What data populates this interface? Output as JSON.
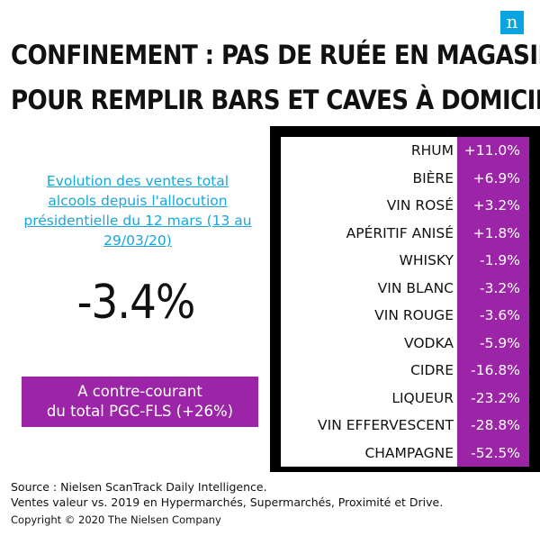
{
  "logo": {
    "letter": "n",
    "color": "#0AA4E0"
  },
  "headline": {
    "line1": "CONFINEMENT : PAS DE RUÉE EN MAGASIN",
    "line2": "POUR REMPLIR BARS ET CAVES À DOMICILE"
  },
  "evolution_text": "Evolution des ventes total alcools depuis l'allocution présidentielle  du 12 mars (13 au 29/03/20)",
  "total_change": "-3.4%",
  "callout": {
    "line1": "A contre-courant",
    "line2": "du total PGC-FLS (+26%)"
  },
  "colors": {
    "accent": "#9c25a7",
    "link": "#1aa6d8",
    "frame": "#000000"
  },
  "chart_data": {
    "type": "table",
    "categories": [
      "RHUM",
      "BIÈRE",
      "VIN ROSÉ",
      "APÉRITIF ANISÉ",
      "WHISKY",
      "VIN BLANC",
      "VIN ROUGE",
      "VODKA",
      "CIDRE",
      "LIQUEUR",
      "VIN EFFERVESCENT",
      "CHAMPAGNE"
    ],
    "values": [
      11.0,
      6.9,
      3.2,
      1.8,
      -1.9,
      -3.2,
      -3.6,
      -5.9,
      -16.8,
      -23.2,
      -28.8,
      -52.5
    ],
    "value_labels": [
      "+11.0%",
      "+6.9%",
      "+3.2%",
      "+1.8%",
      "-1.9%",
      "-3.2%",
      "-3.6%",
      "-5.9%",
      "-16.8%",
      "-23.2%",
      "-28.8%",
      "-52.5%"
    ]
  },
  "footer": {
    "source": "Source : Nielsen ScanTrack Daily Intelligence.",
    "note": "Ventes valeur vs. 2019 en Hypermarchés, Supermarchés, Proximité et Drive.",
    "copyright": "Copyright © 2020 The Nielsen Company"
  }
}
